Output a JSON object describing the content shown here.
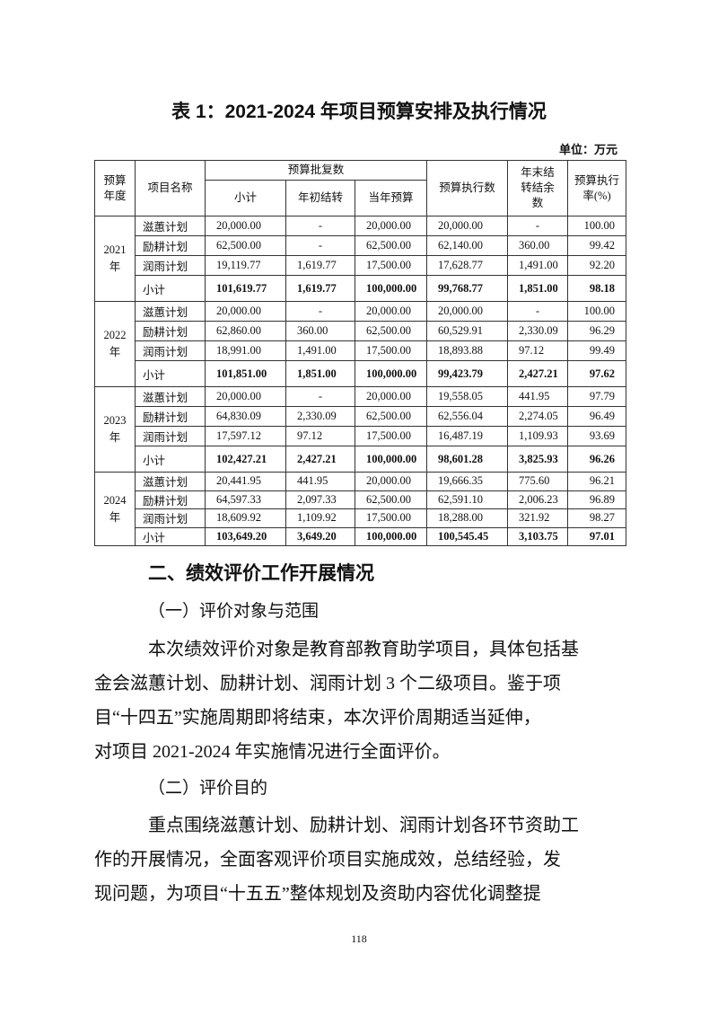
{
  "title": "表 1：2021-2024 年项目预算安排及执行情况",
  "unit": "单位：万元",
  "table": {
    "header": {
      "year": "预算年度",
      "name": "项目名称",
      "approved": "预算批复数",
      "subtotal": "小计",
      "carryover": "年初结转",
      "current": "当年预算",
      "executed": "预算执行数",
      "balance": "年末结转结余数",
      "rate": "预算执行率(%)"
    },
    "groups": [
      {
        "year": "2021 年",
        "rows": [
          [
            "滋蕙计划",
            "20,000.00",
            "-",
            "20,000.00",
            "20,000.00",
            "-",
            "100.00"
          ],
          [
            "励耕计划",
            "62,500.00",
            "-",
            "62,500.00",
            "62,140.00",
            "360.00",
            "99.42"
          ],
          [
            "润雨计划",
            "19,119.77",
            "1,619.77",
            "17,500.00",
            "17,628.77",
            "1,491.00",
            "92.20"
          ],
          [
            "小计",
            "101,619.77",
            "1,619.77",
            "100,000.00",
            "99,768.77",
            "1,851.00",
            "98.18"
          ]
        ]
      },
      {
        "year": "2022 年",
        "rows": [
          [
            "滋蕙计划",
            "20,000.00",
            "-",
            "20,000.00",
            "20,000.00",
            "-",
            "100.00"
          ],
          [
            "励耕计划",
            "62,860.00",
            "360.00",
            "62,500.00",
            "60,529.91",
            "2,330.09",
            "96.29"
          ],
          [
            "润雨计划",
            "18,991.00",
            "1,491.00",
            "17,500.00",
            "18,893.88",
            "97.12",
            "99.49"
          ],
          [
            "小计",
            "101,851.00",
            "1,851.00",
            "100,000.00",
            "99,423.79",
            "2,427.21",
            "97.62"
          ]
        ]
      },
      {
        "year": "2023 年",
        "rows": [
          [
            "滋蕙计划",
            "20,000.00",
            "-",
            "20,000.00",
            "19,558.05",
            "441.95",
            "97.79"
          ],
          [
            "励耕计划",
            "64,830.09",
            "2,330.09",
            "62,500.00",
            "62,556.04",
            "2,274.05",
            "96.49"
          ],
          [
            "润雨计划",
            "17,597.12",
            "97.12",
            "17,500.00",
            "16,487.19",
            "1,109.93",
            "93.69"
          ],
          [
            "小计",
            "102,427.21",
            "2,427.21",
            "100,000.00",
            "98,601.28",
            "3,825.93",
            "96.26"
          ]
        ]
      },
      {
        "year": "2024 年",
        "rows": [
          [
            "滋蕙计划",
            "20,441.95",
            "441.95",
            "20,000.00",
            "19,666.35",
            "775.60",
            "96.21"
          ],
          [
            "励耕计划",
            "64,597.33",
            "2,097.33",
            "62,500.00",
            "62,591.10",
            "2,006.23",
            "96.89"
          ],
          [
            "润雨计划",
            "18,609.92",
            "1,109.92",
            "17,500.00",
            "18,288.00",
            "321.92",
            "98.27"
          ],
          [
            "小计",
            "103,649.20",
            "3,649.20",
            "100,000.00",
            "100,545.45",
            "3,103.75",
            "97.01"
          ]
        ]
      }
    ]
  },
  "section": {
    "heading": "二、绩效评价工作开展情况",
    "subsections": [
      {
        "heading": "（一）评价对象与范围",
        "lines": [
          "本次绩效评价对象是教育部教育助学项目，具体包括基",
          "金会滋蕙计划、励耕计划、润雨计划 3 个二级项目。鉴于项",
          "目“十四五”实施周期即将结束，本次评价周期适当延伸，",
          "对项目 2021-2024 年实施情况进行全面评价。"
        ]
      },
      {
        "heading": "（二）评价目的",
        "lines": [
          "重点围绕滋蕙计划、励耕计划、润雨计划各环节资助工",
          "作的开展情况，全面客观评价项目实施成效，总结经验，发",
          "现问题，为项目“十五五”整体规划及资助内容优化调整提"
        ]
      }
    ]
  },
  "page_number": "118"
}
